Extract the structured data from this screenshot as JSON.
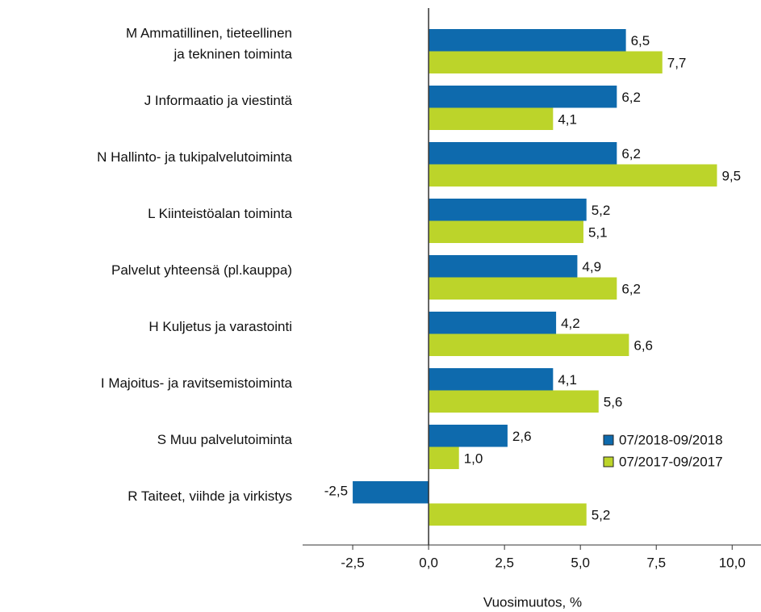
{
  "chart_data": {
    "type": "bar",
    "orientation": "horizontal",
    "x_label": "Vuosimuutos, %",
    "categories": [
      "M Ammatillinen, tieteellinen\nja tekninen toiminta",
      "J Informaatio ja viestintä",
      "N Hallinto- ja tukipalvelutoiminta",
      "L Kiinteistöalan toiminta",
      "Palvelut yhteensä (pl.kauppa)",
      "H Kuljetus ja varastointi",
      "I Majoitus- ja ravitsemistoiminta",
      "S Muu palvelutoiminta",
      "R Taiteet, viihde ja virkistys"
    ],
    "series": [
      {
        "name": "07/2018-09/2018",
        "color": "#0e6aad",
        "values": [
          6.5,
          6.2,
          6.2,
          5.2,
          4.9,
          4.2,
          4.1,
          2.6,
          -2.5
        ],
        "value_labels": [
          "6,5",
          "6,2",
          "6,2",
          "5,2",
          "4,9",
          "4,2",
          "4,1",
          "2,6",
          "-2,5"
        ]
      },
      {
        "name": "07/2017-09/2017",
        "color": "#bcd42a",
        "values": [
          7.7,
          4.1,
          9.5,
          5.1,
          6.2,
          6.6,
          5.6,
          1.0,
          5.2
        ],
        "value_labels": [
          "7,7",
          "4,1",
          "9,5",
          "5,1",
          "6,2",
          "6,6",
          "5,6",
          "1,0",
          "5,2"
        ]
      }
    ],
    "xlim": [
      -4.15,
      10.95
    ],
    "xticks": [
      {
        "value": -2.5,
        "label": "-2,5"
      },
      {
        "value": 0,
        "label": "0,0"
      },
      {
        "value": 2.5,
        "label": "2,5"
      },
      {
        "value": 5,
        "label": "5,0"
      },
      {
        "value": 7.5,
        "label": "7,5"
      },
      {
        "value": 10,
        "label": "10,0"
      }
    ],
    "legend": "lower right"
  }
}
